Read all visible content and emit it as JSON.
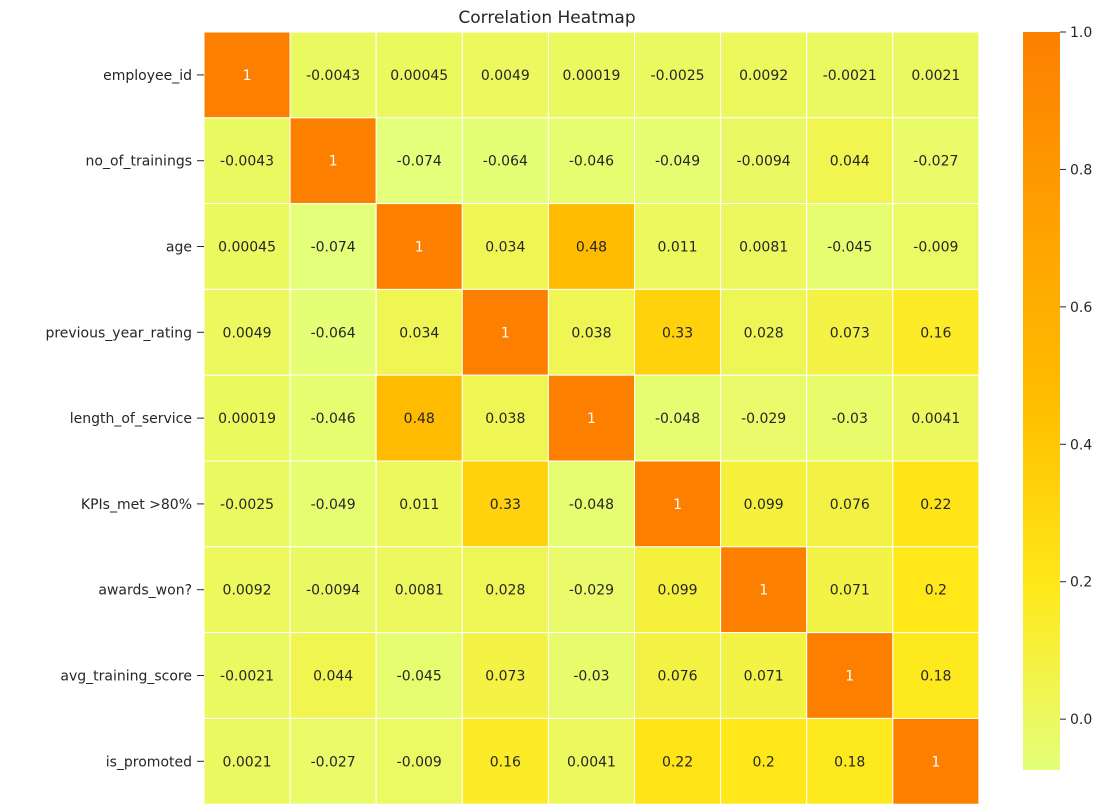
{
  "chart_data": {
    "type": "heatmap",
    "title": "Correlation Heatmap",
    "row_labels": [
      "employee_id",
      "no_of_trainings",
      "age",
      "previous_year_rating",
      "length_of_service",
      "KPIs_met >80%",
      "awards_won?",
      "avg_training_score",
      "is_promoted"
    ],
    "col_labels": [
      "",
      "",
      "",
      "",
      "",
      "",
      "",
      "",
      ""
    ],
    "values": [
      [
        1,
        -0.0043,
        0.00045,
        0.0049,
        0.00019,
        -0.0025,
        0.0092,
        -0.0021,
        0.0021
      ],
      [
        -0.0043,
        1,
        -0.074,
        -0.064,
        -0.046,
        -0.049,
        -0.0094,
        0.044,
        -0.027
      ],
      [
        0.00045,
        -0.074,
        1,
        0.034,
        0.48,
        0.011,
        0.0081,
        -0.045,
        -0.009
      ],
      [
        0.0049,
        -0.064,
        0.034,
        1,
        0.038,
        0.33,
        0.028,
        0.073,
        0.16
      ],
      [
        0.00019,
        -0.046,
        0.48,
        0.038,
        1,
        -0.048,
        -0.029,
        -0.03,
        0.0041
      ],
      [
        -0.0025,
        -0.049,
        0.011,
        0.33,
        -0.048,
        1,
        0.099,
        0.076,
        0.22
      ],
      [
        0.0092,
        -0.0094,
        0.0081,
        0.028,
        -0.029,
        0.099,
        1,
        0.071,
        0.2
      ],
      [
        -0.0021,
        0.044,
        -0.045,
        0.073,
        -0.03,
        0.076,
        0.071,
        1,
        0.18
      ],
      [
        0.0021,
        -0.027,
        -0.009,
        0.16,
        0.0041,
        0.22,
        0.2,
        0.18,
        1
      ]
    ],
    "colormap": "Wistia",
    "vmin": -0.074,
    "vmax": 1.0,
    "colorbar_ticks": [
      0.0,
      0.2,
      0.4,
      0.6,
      0.8,
      1.0
    ],
    "colorbar_tick_labels": [
      "0.0",
      "0.2",
      "0.4",
      "0.6",
      "0.8",
      "1.0"
    ],
    "annotated": true,
    "colors": {
      "low": "#e4ff7a",
      "mid1": "#ffe81a",
      "mid2": "#ffbd00",
      "high": "#ff8000",
      "cell_border": "#ffffff",
      "annotation_dark": "#262626",
      "annotation_light": "#ffffff"
    }
  }
}
